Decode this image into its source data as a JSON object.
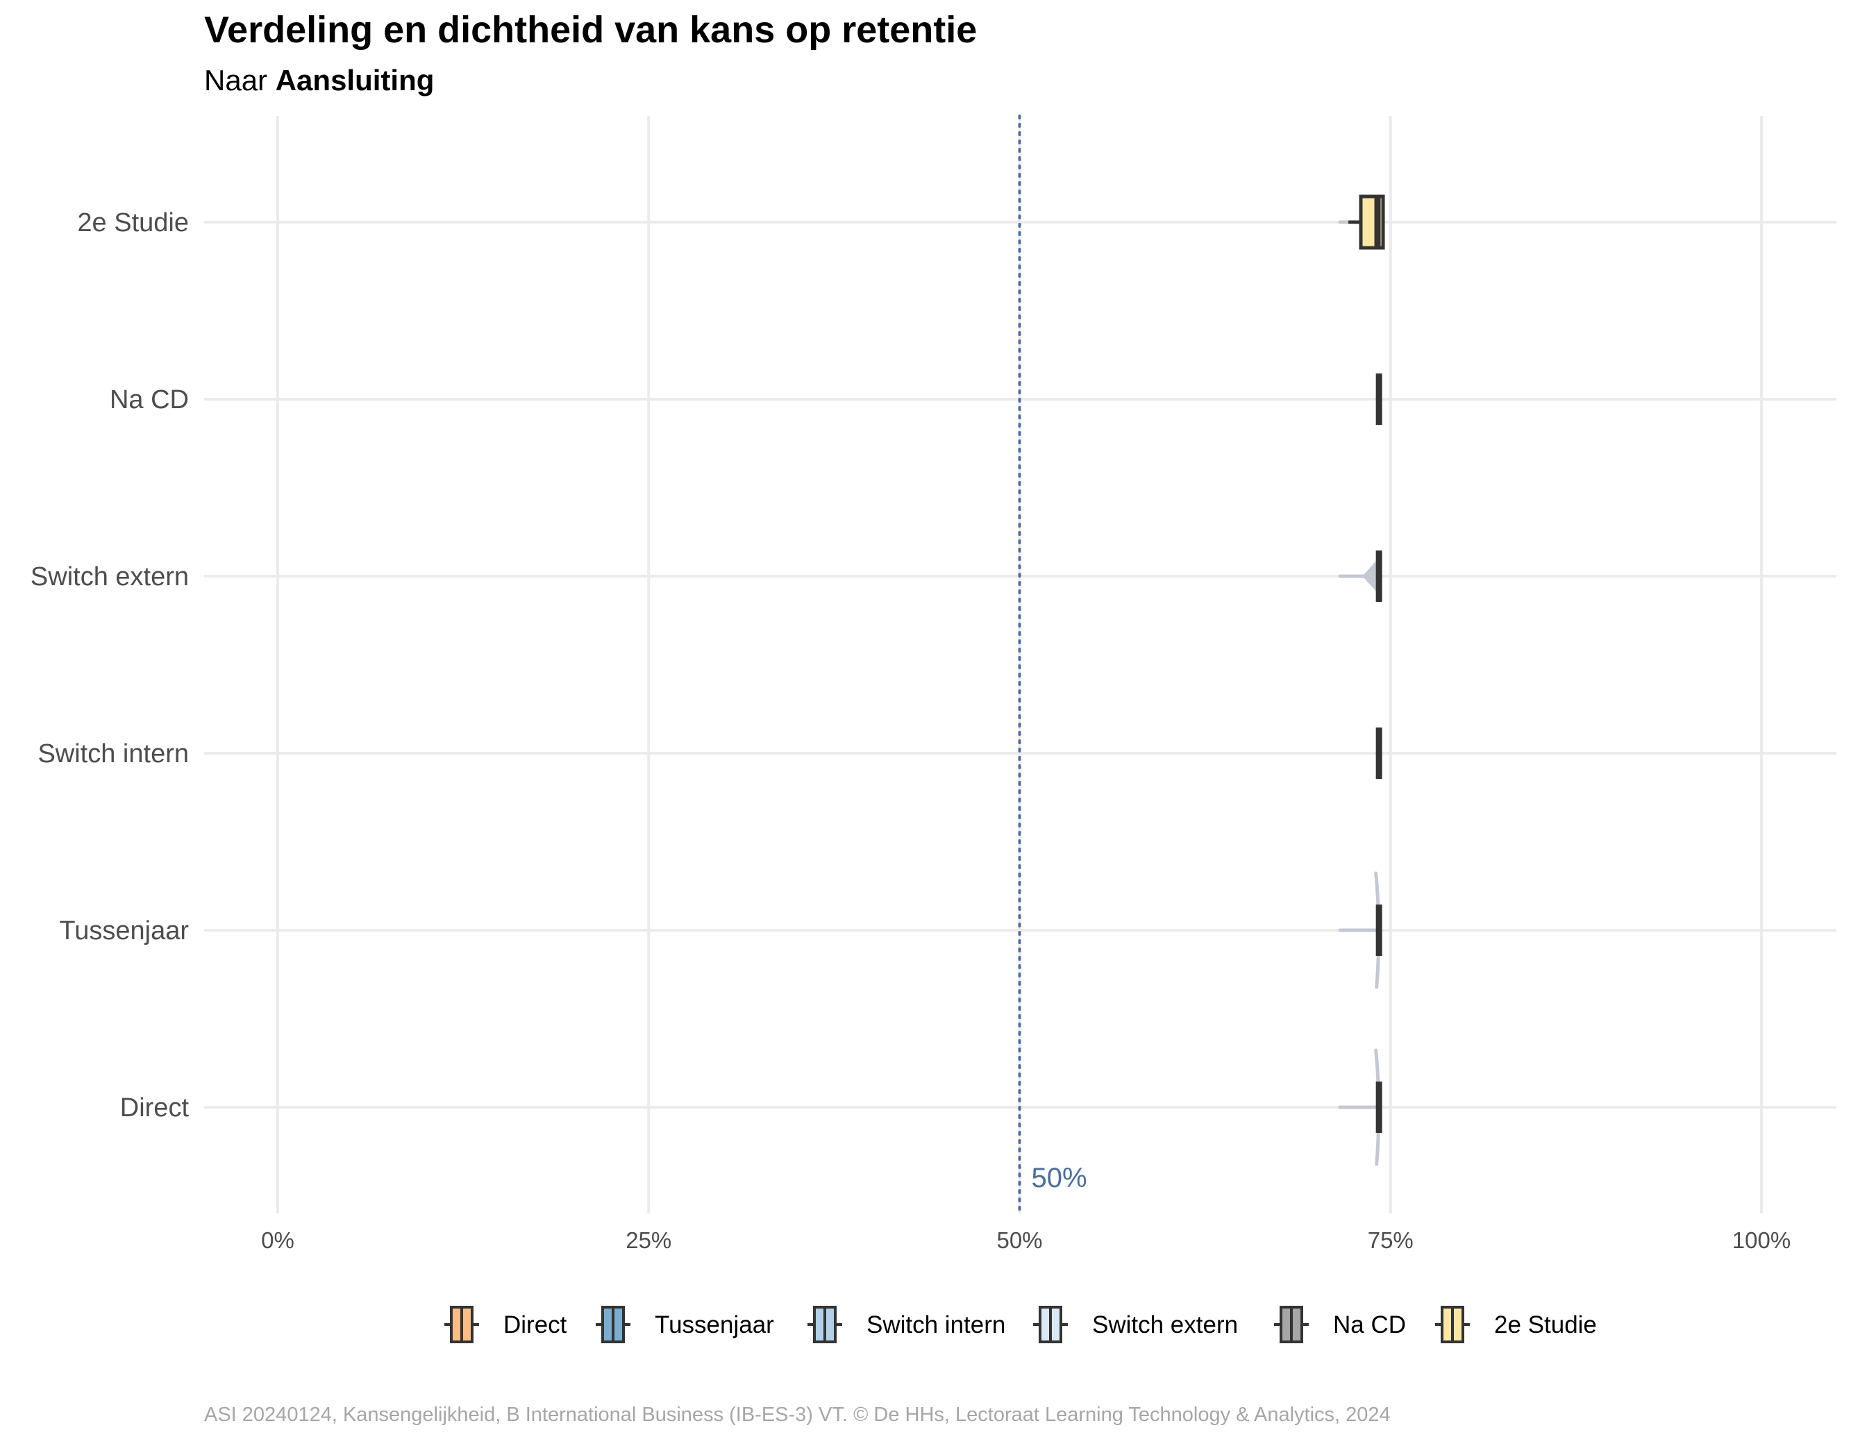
{
  "title": "Verdeling en dichtheid van kans op retentie",
  "subtitle": {
    "prefix": "Naar",
    "group": "Aansluiting"
  },
  "caption": "ASI 20240124, Kansengelijkheid, B International Business (IB-ES-3) VT. © De HHs, Lectoraat Learning Technology & Analytics, 2024",
  "chart_data": {
    "type": "violin-box",
    "orientation": "horizontal",
    "x_axis": {
      "range": [
        0,
        1
      ],
      "ticks": [
        0,
        0.25,
        0.5,
        0.75,
        1.0
      ],
      "tick_labels": [
        "0%",
        "25%",
        "50%",
        "75%",
        "100%"
      ],
      "gridlines": true
    },
    "reference_line": {
      "x": 0.5,
      "label": "50%",
      "style": "dotted",
      "color": "#4a6f9a"
    },
    "categories": [
      "2e Studie",
      "Na CD",
      "Switch extern",
      "Switch intern",
      "Tussenjaar",
      "Direct"
    ],
    "series": [
      {
        "name": "2e Studie",
        "color": "#fde7a4",
        "min": 0.716,
        "q1": 0.73,
        "median": 0.741,
        "q3": 0.745,
        "max": 0.745,
        "has_box_fill": true
      },
      {
        "name": "Na CD",
        "color": "#a6a6a6",
        "min": 0.741,
        "q1": 0.741,
        "median": 0.742,
        "q3": 0.743,
        "max": 0.743,
        "has_box_fill": false
      },
      {
        "name": "Switch extern",
        "color": "#dbe9f6",
        "min": 0.716,
        "q1": 0.741,
        "median": 0.742,
        "q3": 0.743,
        "max": 0.743,
        "has_box_fill": false
      },
      {
        "name": "Switch intern",
        "color": "#b3d0e8",
        "min": 0.741,
        "q1": 0.741,
        "median": 0.742,
        "q3": 0.743,
        "max": 0.743,
        "has_box_fill": false
      },
      {
        "name": "Tussenjaar",
        "color": "#7aaed1",
        "min": 0.716,
        "q1": 0.741,
        "median": 0.742,
        "q3": 0.743,
        "max": 0.743,
        "has_box_fill": false
      },
      {
        "name": "Direct",
        "color": "#fdbd84",
        "min": 0.716,
        "q1": 0.741,
        "median": 0.742,
        "q3": 0.743,
        "max": 0.743,
        "has_box_fill": false
      }
    ],
    "legend": {
      "position": "bottom",
      "items": [
        {
          "label": "Direct",
          "color": "#fdbd84"
        },
        {
          "label": "Tussenjaar",
          "color": "#7aaed1"
        },
        {
          "label": "Switch intern",
          "color": "#b3d0e8"
        },
        {
          "label": "Switch extern",
          "color": "#dbe9f6"
        },
        {
          "label": "Na CD",
          "color": "#a6a6a6"
        },
        {
          "label": "2e Studie",
          "color": "#fde7a4"
        }
      ]
    }
  }
}
